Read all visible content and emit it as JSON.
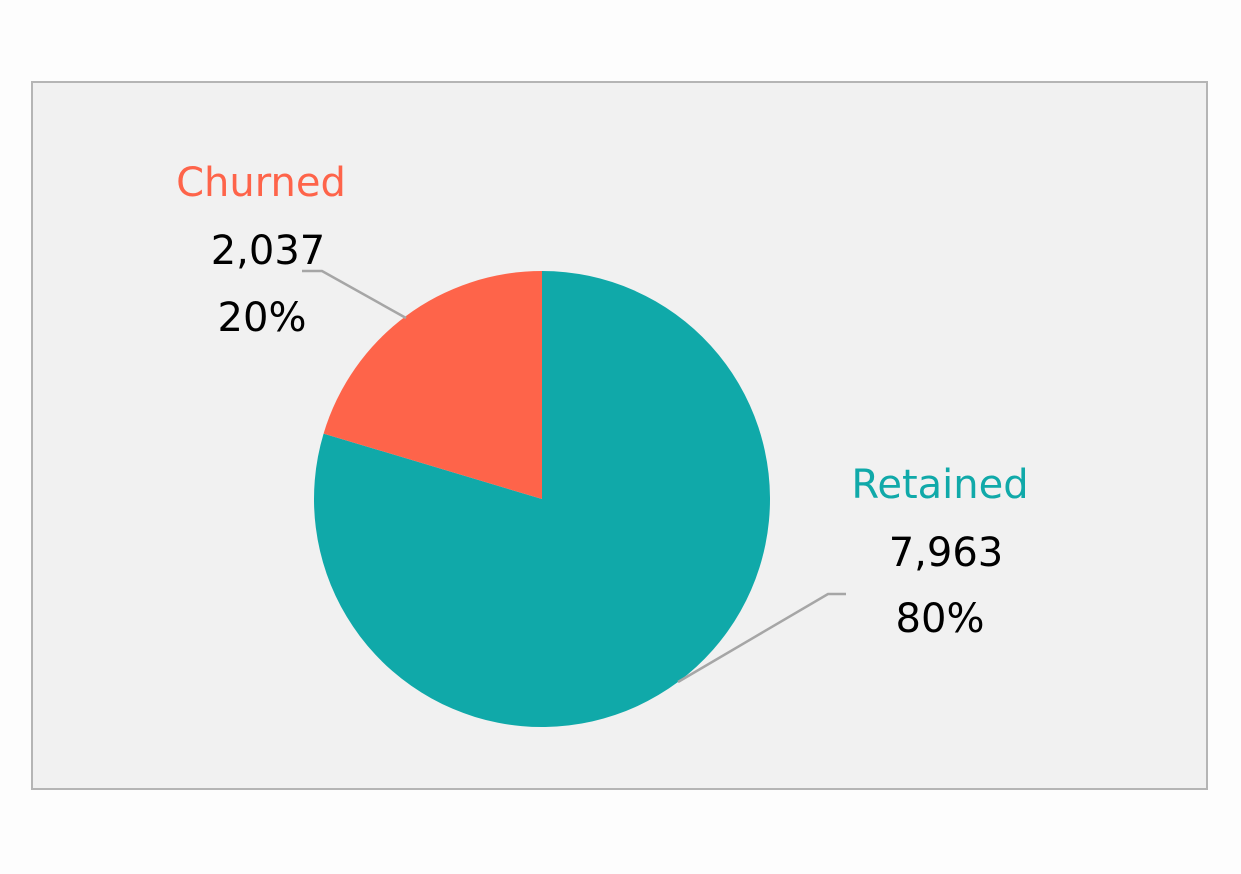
{
  "chart_data": {
    "type": "pie",
    "categories": [
      "Retained",
      "Churned"
    ],
    "values": [
      7963,
      2037
    ],
    "value_labels": [
      "7,963",
      "2,037"
    ],
    "percent_labels": [
      "80%",
      "20%"
    ],
    "colors": [
      "#10a9a9",
      "#fe644a"
    ],
    "start_angle_deg": 0,
    "direction": "clockwise",
    "legend": "none",
    "title": ""
  }
}
